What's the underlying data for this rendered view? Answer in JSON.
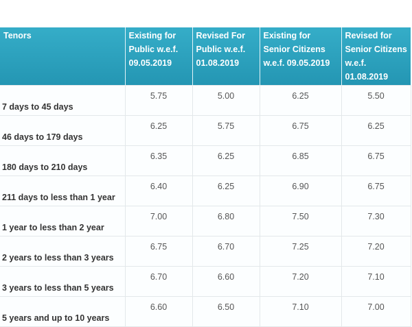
{
  "headers": [
    "Tenors",
    "Existing for Public w.e.f. 09.05.2019",
    "Revised For Public w.e.f. 01.08.2019",
    "Existing for Senior Citizens w.e.f. 09.05.2019",
    "Revised for Senior Citizens w.e.f. 01.08.2019"
  ],
  "rows": [
    [
      "7 days to 45 days",
      "5.75",
      "5.00",
      "6.25",
      "5.50"
    ],
    [
      "46 days to 179 days",
      "6.25",
      "5.75",
      "6.75",
      "6.25"
    ],
    [
      "180 days to 210 days",
      "6.35",
      "6.25",
      "6.85",
      "6.75"
    ],
    [
      "211 days to less than 1 year",
      "6.40",
      "6.25",
      "6.90",
      "6.75"
    ],
    [
      "1 year to less than 2 year",
      "7.00",
      "6.80",
      "7.50",
      "7.30"
    ],
    [
      "2 years to less than 3 years",
      "6.75",
      "6.70",
      "7.25",
      "7.20"
    ],
    [
      "3 years to less than 5 years",
      "6.70",
      "6.60",
      "7.20",
      "7.10"
    ],
    [
      "5 years and up to 10 years",
      "6.60",
      "6.50",
      "7.10",
      "7.00"
    ]
  ],
  "colors": {
    "header": "#2aa1be",
    "header_text": "#ffffff"
  }
}
